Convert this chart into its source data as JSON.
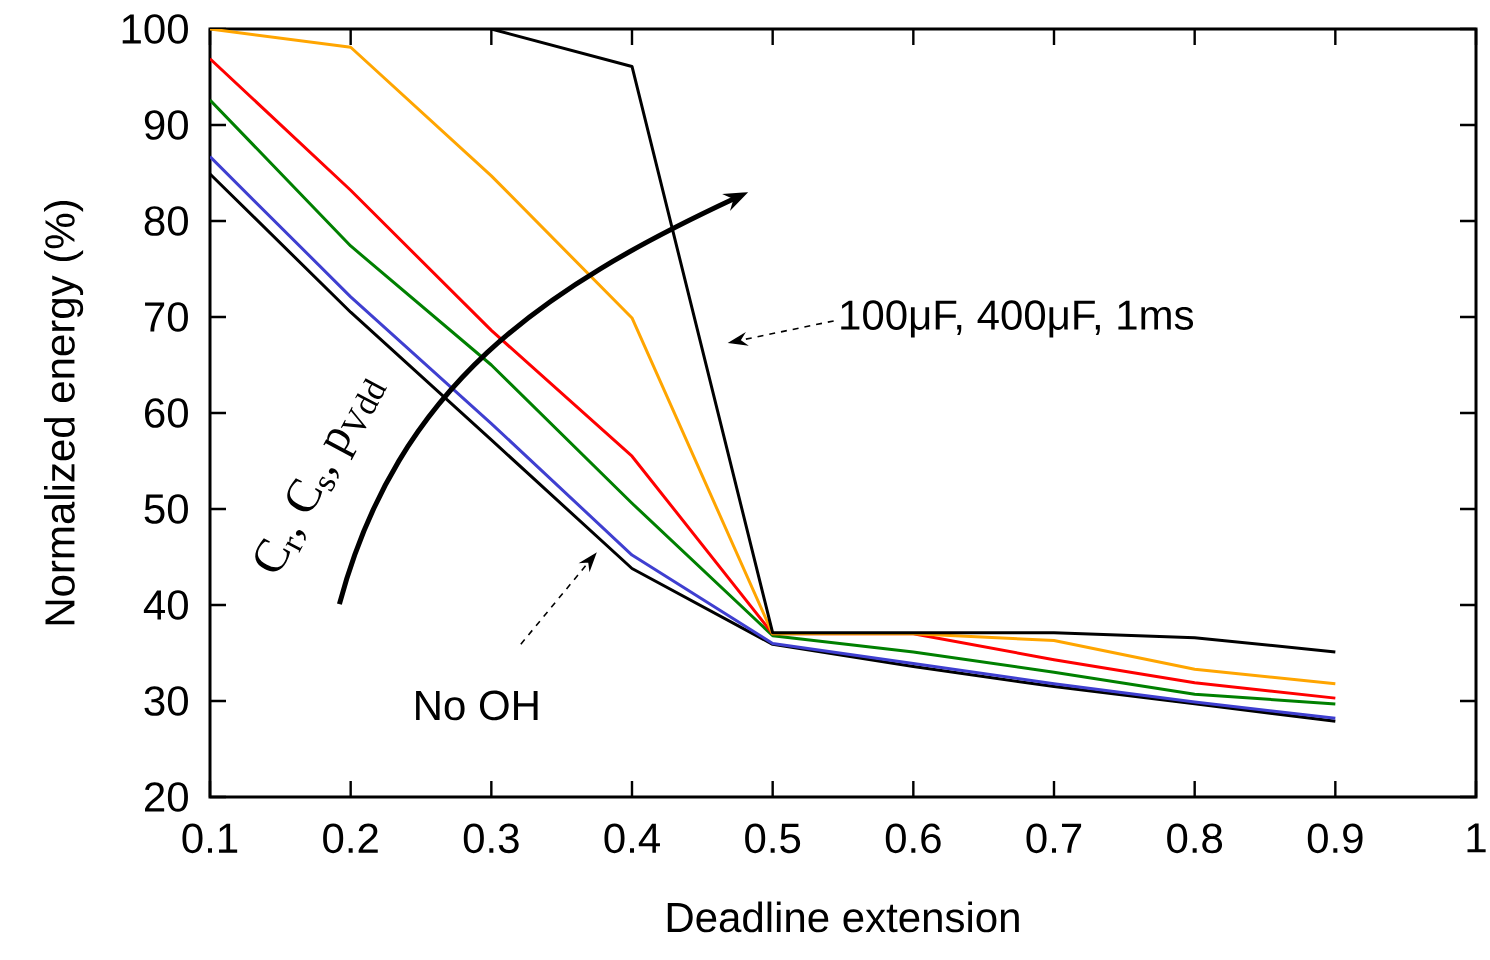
{
  "chart_data": {
    "type": "line",
    "xlabel": "Deadline extension",
    "ylabel": "Normalized energy (%)",
    "x": [
      0.1,
      0.2,
      0.3,
      0.4,
      0.5,
      0.6,
      0.7,
      0.8,
      0.9
    ],
    "series": [
      {
        "color": "#000000",
        "values": [
          84.9,
          70.5,
          57.2,
          43.8,
          35.9,
          33.6,
          31.5,
          29.7,
          27.9
        ]
      },
      {
        "color": "#3f3fd0",
        "values": [
          86.7,
          72.1,
          58.9,
          45.2,
          36.0,
          33.9,
          31.8,
          29.9,
          28.2
        ]
      },
      {
        "color": "#008000",
        "values": [
          92.6,
          77.4,
          65.0,
          50.6,
          36.8,
          35.1,
          33.0,
          30.7,
          29.7
        ]
      },
      {
        "color": "#ff0000",
        "values": [
          96.9,
          83.2,
          68.6,
          55.5,
          37.0,
          37.0,
          34.3,
          31.9,
          30.3
        ]
      },
      {
        "color": "#ffa500",
        "values": [
          100,
          98.1,
          84.7,
          69.9,
          37.0,
          37.0,
          36.3,
          33.3,
          31.8
        ]
      },
      {
        "color": "#000000",
        "values": [
          null,
          null,
          100,
          96.1,
          37.1,
          37.1,
          37.1,
          36.6,
          35.1
        ]
      }
    ],
    "xlim": [
      0.1,
      1
    ],
    "ylim": [
      20,
      100
    ],
    "xticks": [
      0.1,
      0.2,
      0.3,
      0.4,
      0.5,
      0.6,
      0.7,
      0.8,
      0.9,
      1
    ],
    "yticks": [
      20,
      30,
      40,
      50,
      60,
      70,
      80,
      90,
      100
    ],
    "line_style": "solid",
    "annotations": [
      "100μF, 400μF, 1ms",
      "No OH",
      "C$_{r}$, C$_{s}$, p$_{Vdd}$"
    ]
  }
}
